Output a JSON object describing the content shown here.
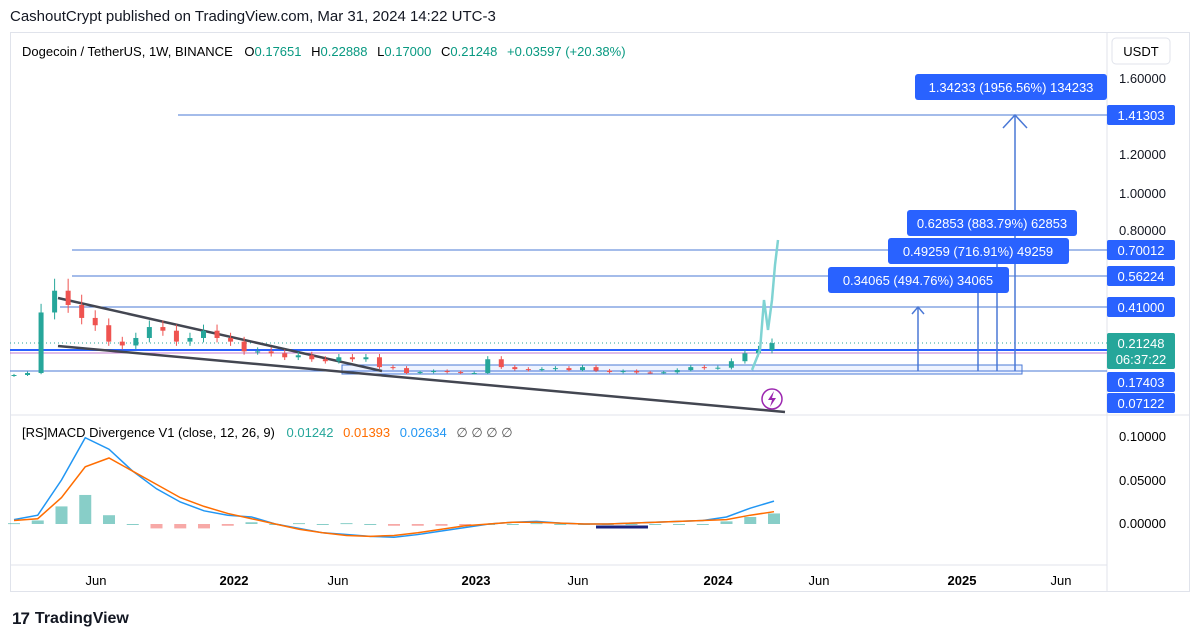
{
  "header": {
    "published": "CashoutCrypt published on TradingView.com, Mar 31, 2024 14:22 UTC-3"
  },
  "symbol": {
    "name": "Dogecoin / TetherUS, 1W, BINANCE",
    "o_label": "O",
    "o": "0.17651",
    "h_label": "H",
    "h": "0.22888",
    "l_label": "L",
    "l": "0.17000",
    "c_label": "C",
    "c": "0.21248",
    "change": "+0.03597 (+20.38%)",
    "currency": "USDT"
  },
  "colors": {
    "up": "#26a69a",
    "down": "#ef5350",
    "accent": "#2962ff",
    "line": "#4a78d6",
    "macd": "#2196f3",
    "signal": "#ff6d00",
    "trend": "#434651"
  },
  "price_axis": {
    "ticks": [
      "1.60000",
      "1.20000",
      "1.00000",
      "0.80000"
    ],
    "levels": [
      {
        "value": "1.41303"
      },
      {
        "value": "0.70012"
      },
      {
        "value": "0.56224"
      },
      {
        "value": "0.41000"
      },
      {
        "value": "0.17403"
      },
      {
        "value": "0.07122"
      }
    ],
    "current_price": "0.21248",
    "countdown": "06:37:22"
  },
  "targets": [
    {
      "text": "1.34233 (1956.56%) 134233"
    },
    {
      "text": "0.62853 (883.79%) 62853"
    },
    {
      "text": "0.49259 (716.91%) 49259"
    },
    {
      "text": "0.34065 (494.76%) 34065"
    }
  ],
  "time_axis": [
    "Jun",
    "2022",
    "Jun",
    "2023",
    "Jun",
    "2024",
    "Jun",
    "2025",
    "Jun"
  ],
  "indicator": {
    "name": "[RS]MACD Divergence V1 (close, 12, 26, 9)",
    "v1": "0.01242",
    "v2": "0.01393",
    "v3": "0.02634",
    "nulls": "∅ ∅ ∅ ∅",
    "ticks": [
      "0.10000",
      "0.05000",
      "0.00000"
    ]
  },
  "footer": {
    "logo": "17",
    "brand": "TradingView"
  },
  "chart_data": [
    {
      "type": "candlestick",
      "title": "Dogecoin / TetherUS, 1W, BINANCE",
      "x_range": [
        "2021-03",
        "2025-09"
      ],
      "y_ticks": [
        0.8,
        1.0,
        1.2,
        1.6
      ],
      "horizontal_levels": [
        1.41303,
        0.70012,
        0.56224,
        0.41,
        0.17403,
        0.07122
      ],
      "last_close": 0.21248,
      "approx_weekly_closes": [
        [
          "2021-03",
          0.05
        ],
        [
          "2021-04",
          0.06
        ],
        [
          "2021-04",
          0.38
        ],
        [
          "2021-05",
          0.49
        ],
        [
          "2021-05",
          0.42
        ],
        [
          "2021-06",
          0.35
        ],
        [
          "2021-06",
          0.31
        ],
        [
          "2021-07",
          0.22
        ],
        [
          "2021-07",
          0.2
        ],
        [
          "2021-08",
          0.24
        ],
        [
          "2021-08",
          0.3
        ],
        [
          "2021-09",
          0.28
        ],
        [
          "2021-09",
          0.22
        ],
        [
          "2021-10",
          0.24
        ],
        [
          "2021-10",
          0.28
        ],
        [
          "2021-11",
          0.24
        ],
        [
          "2021-11",
          0.22
        ],
        [
          "2021-12",
          0.17
        ],
        [
          "2021-12",
          0.17
        ],
        [
          "2022-01",
          0.16
        ],
        [
          "2022-01",
          0.14
        ],
        [
          "2022-02",
          0.15
        ],
        [
          "2022-02",
          0.13
        ],
        [
          "2022-03",
          0.12
        ],
        [
          "2022-03",
          0.14
        ],
        [
          "2022-04",
          0.13
        ],
        [
          "2022-04",
          0.14
        ],
        [
          "2022-05",
          0.09
        ],
        [
          "2022-05",
          0.085
        ],
        [
          "2022-06",
          0.06
        ],
        [
          "2022-06",
          0.065
        ],
        [
          "2022-07",
          0.07
        ],
        [
          "2022-08",
          0.065
        ],
        [
          "2022-09",
          0.06
        ],
        [
          "2022-10",
          0.06
        ],
        [
          "2022-10",
          0.13
        ],
        [
          "2022-11",
          0.09
        ],
        [
          "2022-11",
          0.08
        ],
        [
          "2022-12",
          0.075
        ],
        [
          "2023-01",
          0.08
        ],
        [
          "2023-02",
          0.085
        ],
        [
          "2023-03",
          0.075
        ],
        [
          "2023-04",
          0.09
        ],
        [
          "2023-05",
          0.072
        ],
        [
          "2023-06",
          0.065
        ],
        [
          "2023-07",
          0.07
        ],
        [
          "2023-08",
          0.063
        ],
        [
          "2023-09",
          0.062
        ],
        [
          "2023-10",
          0.064
        ],
        [
          "2023-11",
          0.075
        ],
        [
          "2023-12",
          0.09
        ],
        [
          "2024-01",
          0.085
        ],
        [
          "2024-02",
          0.087
        ],
        [
          "2024-02",
          0.12
        ],
        [
          "2024-03",
          0.16
        ],
        [
          "2024-03",
          0.177
        ],
        [
          "2024-03",
          0.212
        ]
      ],
      "projection_targets": [
        1.34233,
        0.62853,
        0.49259,
        0.34065
      ],
      "projection_target_labels": [
        "1.34233 (1956.56%) 134233",
        "0.62853 (883.79%) 62853",
        "0.49259 (716.91%) 49259",
        "0.34065 (494.76%) 34065"
      ]
    },
    {
      "type": "line",
      "title": "[RS]MACD Divergence V1 (close, 12, 26, 9)",
      "y_ticks": [
        0.0,
        0.05,
        0.1
      ],
      "series": [
        {
          "values": [
            0.005,
            0.01,
            0.05,
            0.098,
            0.085,
            0.06,
            0.04,
            0.025,
            0.015,
            0.01,
            0.008,
            0.0,
            -0.005,
            -0.01,
            -0.012,
            -0.014,
            -0.015,
            -0.012,
            -0.008,
            -0.004,
            0.0,
            0.002,
            0.003,
            0.001,
            0.0,
            0.0,
            0.001,
            0.002,
            0.003,
            0.004,
            0.008,
            0.018,
            0.026
          ]
        },
        {
          "values": [
            0.004,
            0.006,
            0.03,
            0.065,
            0.075,
            0.06,
            0.045,
            0.03,
            0.02,
            0.012,
            0.006,
            0.0,
            -0.006,
            -0.01,
            -0.013,
            -0.014,
            -0.013,
            -0.01,
            -0.006,
            -0.002,
            0.0,
            0.002,
            0.002,
            0.001,
            0.0,
            0.0,
            0.001,
            0.002,
            0.003,
            0.004,
            0.005,
            0.01,
            0.014
          ]
        }
      ],
      "current_values": [
        0.01242,
        0.01393,
        0.02634
      ]
    }
  ]
}
